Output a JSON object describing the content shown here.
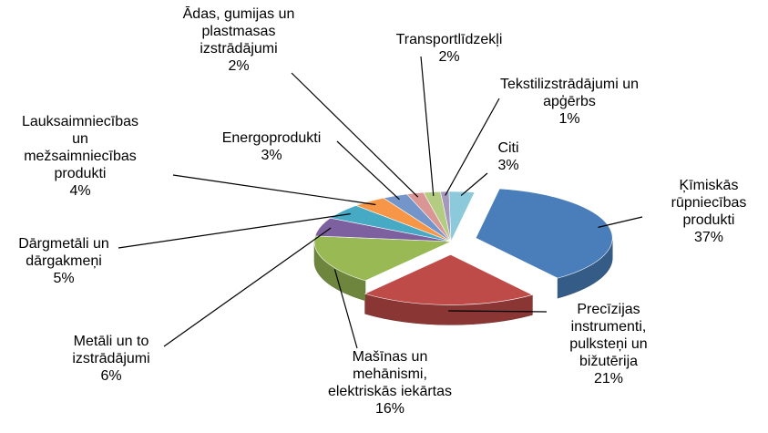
{
  "chart_data": {
    "type": "pie",
    "categories": [
      "Ķīmiskās rūpniecības produkti",
      "Precīzijas instrumenti, pulksteņi un bižutērija",
      "Mašīnas un mehānismi, elektriskās iekārtas",
      "Metāli un to izstrādājumi",
      "Dārgmetāli un dārgakmeņi",
      "Lauksaimniecības un mežsaimniecības produkti",
      "Energoprodukti",
      "Ādas, gumijas un plastmasas izstrādājumi",
      "Transportlīdzekļi",
      "Tekstilizstrādājumi un apģērbs",
      "Citi"
    ],
    "values": [
      37,
      21,
      16,
      6,
      5,
      4,
      3,
      2,
      2,
      1,
      3
    ],
    "value_labels": [
      "37%",
      "21%",
      "16%",
      "6%",
      "5%",
      "4%",
      "3%",
      "2%",
      "2%",
      "1%",
      "3%"
    ],
    "colors": [
      "#4a7ebb",
      "#be4b48",
      "#98b954",
      "#7d60a0",
      "#46aac5",
      "#f79646",
      "#7395c9",
      "#d99694",
      "#b3cc82",
      "#a598bd",
      "#8ccadb"
    ]
  }
}
